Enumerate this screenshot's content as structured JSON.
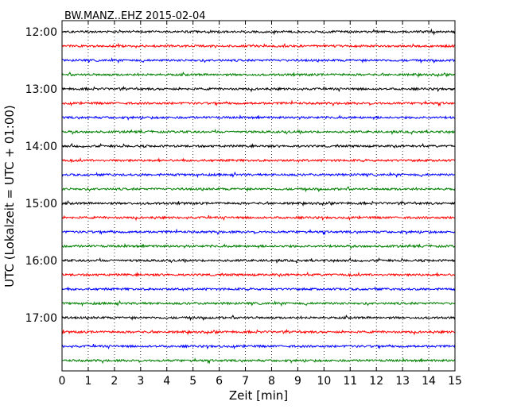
{
  "chart_data": {
    "type": "line",
    "title": "BW.MANZ..EHZ 2015-02-04",
    "xlabel": "Zeit  [min]",
    "ylabel": "UTC (Lokalzeit = UTC + 01:00)",
    "xlim": [
      0,
      15
    ],
    "x_ticks": [
      "0",
      "1",
      "2",
      "3",
      "4",
      "5",
      "6",
      "7",
      "8",
      "9",
      "10",
      "11",
      "12",
      "13",
      "14",
      "15"
    ],
    "y_tick_labels": [
      "12:00",
      "13:00",
      "14:00",
      "15:00",
      "16:00",
      "17:00"
    ],
    "grid": "vertical dotted",
    "trace_colors": [
      "#000000",
      "#ff0000",
      "#0000ff",
      "#008000"
    ],
    "traces": [
      {
        "start": "12:00"
      },
      {
        "start": "12:15"
      },
      {
        "start": "12:30"
      },
      {
        "start": "12:45"
      },
      {
        "start": "13:00"
      },
      {
        "start": "13:15"
      },
      {
        "start": "13:30"
      },
      {
        "start": "13:45"
      },
      {
        "start": "14:00"
      },
      {
        "start": "14:15"
      },
      {
        "start": "14:30"
      },
      {
        "start": "14:45"
      },
      {
        "start": "15:00"
      },
      {
        "start": "15:15"
      },
      {
        "start": "15:30"
      },
      {
        "start": "15:45"
      },
      {
        "start": "16:00"
      },
      {
        "start": "16:15"
      },
      {
        "start": "16:30"
      },
      {
        "start": "16:45"
      },
      {
        "start": "17:00"
      },
      {
        "start": "17:15"
      },
      {
        "start": "17:30"
      },
      {
        "start": "17:45"
      }
    ]
  }
}
